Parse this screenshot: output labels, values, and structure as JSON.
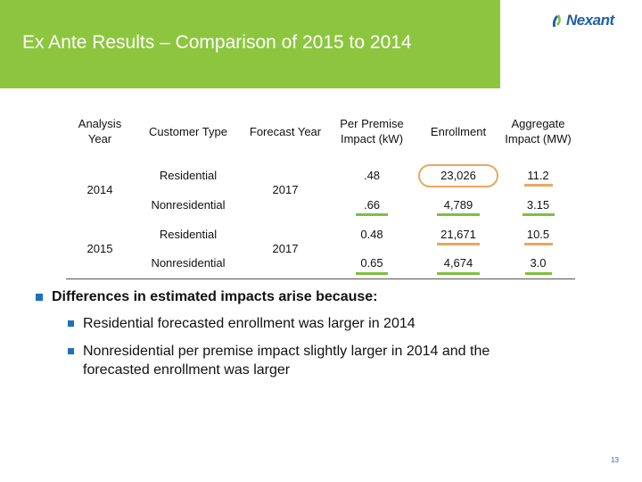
{
  "slide": {
    "title": "Ex Ante Results – Comparison of 2015 to 2014",
    "logo_text": "Nexant",
    "page_number": "13"
  },
  "table": {
    "headers": {
      "analysis_year": "Analysis Year",
      "customer_type": "Customer Type",
      "forecast_year": "Forecast Year",
      "per_premise": "Per Premise Impact (kW)",
      "enrollment": "Enrollment",
      "aggregate": "Aggregate Impact (MW)"
    },
    "groups": [
      {
        "analysis_year": "2014",
        "forecast_year": "2017",
        "rows": [
          {
            "customer_type": "Residential",
            "per_premise": ".48",
            "enrollment": "23,026",
            "aggregate": "11.2"
          },
          {
            "customer_type": "Nonresidential",
            "per_premise": ".66",
            "enrollment": "4,789",
            "aggregate": "3.15"
          }
        ]
      },
      {
        "analysis_year": "2015",
        "forecast_year": "2017",
        "rows": [
          {
            "customer_type": "Residential",
            "per_premise": "0.48",
            "enrollment": "21,671",
            "aggregate": "10.5"
          },
          {
            "customer_type": "Nonresidential",
            "per_premise": "0.65",
            "enrollment": "4,674",
            "aggregate": "3.0"
          }
        ]
      }
    ]
  },
  "bullets": {
    "main": "Differences in estimated impacts arise because:",
    "sub": [
      "Residential forecasted enrollment was larger in 2014",
      "Nonresidential per premise impact slightly larger in 2014 and the forecasted enrollment was larger"
    ]
  },
  "colors": {
    "title_bar": "#8cc63f",
    "highlight_orange": "#e8a860",
    "highlight_green": "#7fbf3f",
    "bullet_blue": "#1f6fbf"
  }
}
